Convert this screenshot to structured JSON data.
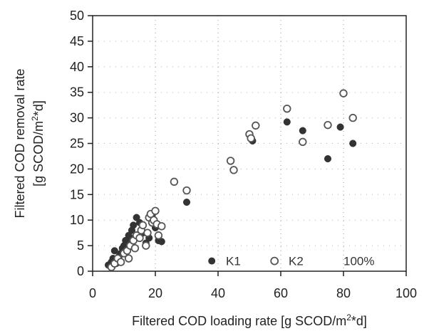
{
  "chart_data": {
    "type": "scatter",
    "xlabel": "Filtered COD loading rate [g SCOD/m",
    "xlabel_sup": "2",
    "xlabel_end": "*d]",
    "ylabel_line1": "Filtered COD removal rate",
    "ylabel_line2": "[g SCOD/m",
    "ylabel_sup": "2",
    "ylabel_end": "*d]",
    "xlim": [
      0,
      100
    ],
    "ylim": [
      0,
      50
    ],
    "xticks": [
      "0",
      "20",
      "40",
      "60",
      "80",
      "100"
    ],
    "yticks": [
      "0",
      "5",
      "10",
      "15",
      "20",
      "25",
      "30",
      "35",
      "40",
      "45",
      "50"
    ],
    "grid": "dotted",
    "legend_position": "bottom-right",
    "annotation": "100%",
    "series": [
      {
        "name": "K1",
        "marker": "filled",
        "color": "#333333",
        "points": [
          [
            5,
            1.2
          ],
          [
            6,
            1.8
          ],
          [
            6.5,
            2.5
          ],
          [
            7,
            4.0
          ],
          [
            7.5,
            1.5
          ],
          [
            8,
            2.2
          ],
          [
            8.5,
            3.0
          ],
          [
            9,
            3.5
          ],
          [
            9.5,
            4.5
          ],
          [
            10,
            5.0
          ],
          [
            10.5,
            6.0
          ],
          [
            11,
            5.5
          ],
          [
            11.5,
            7.0
          ],
          [
            12,
            6.5
          ],
          [
            12.5,
            8.0
          ],
          [
            13,
            9.0
          ],
          [
            14,
            10.5
          ],
          [
            15,
            9.5
          ],
          [
            16,
            7.5
          ],
          [
            17,
            5.5
          ],
          [
            18,
            6.5
          ],
          [
            19,
            11.0
          ],
          [
            20,
            8.5
          ],
          [
            21,
            6.0
          ],
          [
            22,
            5.8
          ],
          [
            30,
            13.5
          ],
          [
            51,
            25.5
          ],
          [
            62,
            29.2
          ],
          [
            67,
            27.5
          ],
          [
            75,
            22.0
          ],
          [
            79,
            28.2
          ],
          [
            83,
            25.0
          ]
        ]
      },
      {
        "name": "K2",
        "marker": "open",
        "color": "#555555",
        "points": [
          [
            6,
            0.8
          ],
          [
            7,
            1.5
          ],
          [
            8,
            2.5
          ],
          [
            9,
            1.8
          ],
          [
            10,
            3.5
          ],
          [
            11,
            4.0
          ],
          [
            11.5,
            2.5
          ],
          [
            12,
            5.0
          ],
          [
            13,
            6.0
          ],
          [
            13.5,
            4.5
          ],
          [
            14,
            7.0
          ],
          [
            15,
            6.5
          ],
          [
            15.5,
            8.0
          ],
          [
            16,
            9.0
          ],
          [
            17,
            5.0
          ],
          [
            17.5,
            7.5
          ],
          [
            18,
            10.5
          ],
          [
            18.5,
            11.2
          ],
          [
            19,
            9.5
          ],
          [
            19.5,
            10.0
          ],
          [
            20,
            11.8
          ],
          [
            20.5,
            9.2
          ],
          [
            21,
            7.0
          ],
          [
            22,
            8.8
          ],
          [
            26,
            17.5
          ],
          [
            30,
            15.8
          ],
          [
            44,
            21.6
          ],
          [
            45,
            19.8
          ],
          [
            50,
            26.8
          ],
          [
            50.5,
            26.0
          ],
          [
            52,
            28.5
          ],
          [
            62,
            31.8
          ],
          [
            67,
            25.3
          ],
          [
            75,
            28.6
          ],
          [
            80,
            34.8
          ],
          [
            83,
            30.0
          ]
        ]
      }
    ]
  }
}
